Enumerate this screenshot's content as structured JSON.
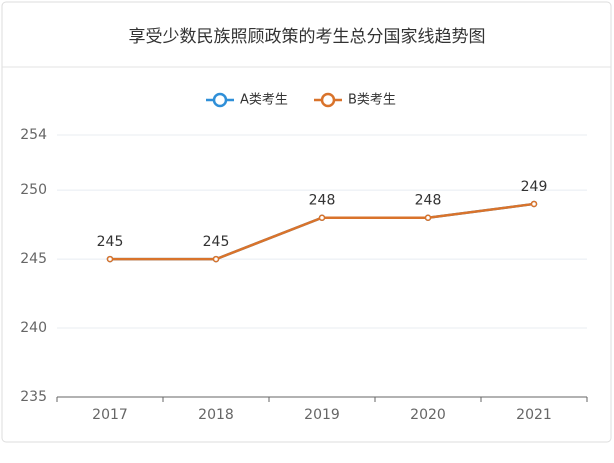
{
  "chart_data": {
    "type": "line",
    "title": "享受少数民族照顾政策的考生总分国家线趋势图",
    "categories": [
      "2017",
      "2018",
      "2019",
      "2020",
      "2021"
    ],
    "series": [
      {
        "name": "A类考生",
        "color": "#2f8fd8",
        "values": [
          245,
          245,
          248,
          248,
          249
        ]
      },
      {
        "name": "B类考生",
        "color": "#d9732b",
        "values": [
          245,
          245,
          248,
          248,
          249
        ]
      }
    ],
    "ylim": [
      235,
      254
    ],
    "yticks": [
      235,
      240,
      245,
      250,
      254
    ],
    "grid": true,
    "legend": "top"
  }
}
